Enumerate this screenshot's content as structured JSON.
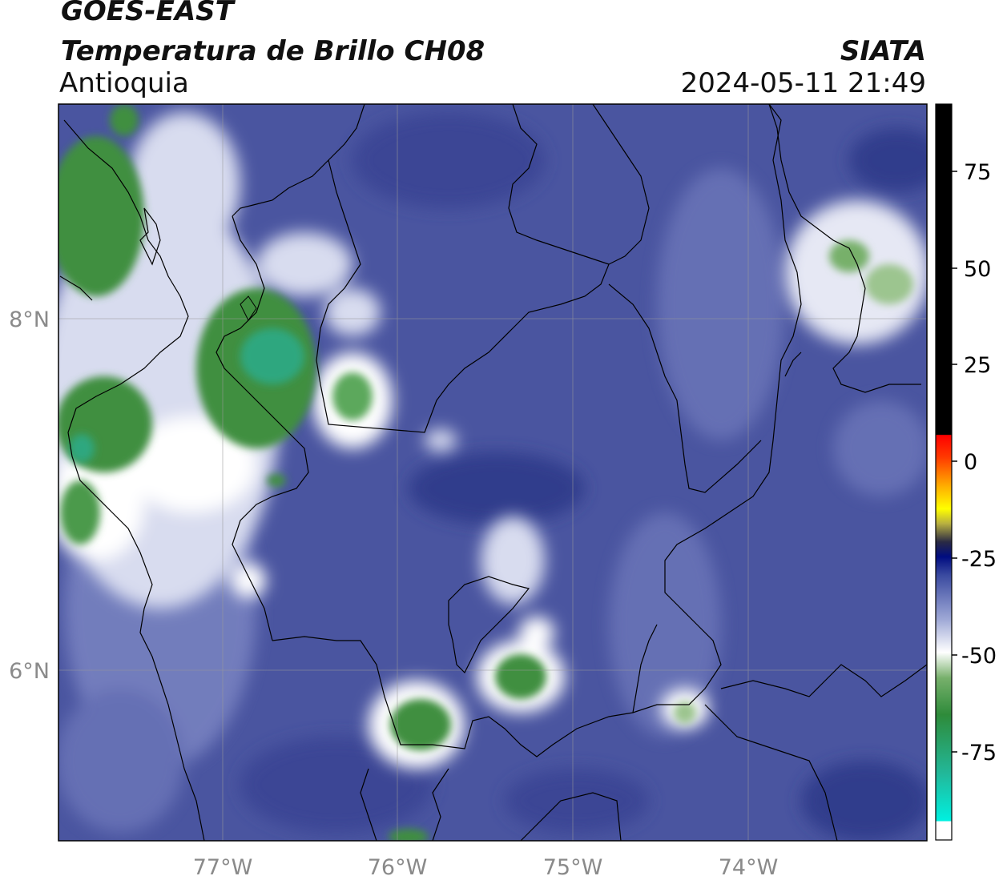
{
  "header": {
    "title": "GOES-EAST",
    "subtitle": "Temperatura de Brillo CH08",
    "region": "Antioquia",
    "brand": "SIATA",
    "timestamp": "2024-05-11 21:49"
  },
  "map": {
    "lon_ticks": [
      "77°W",
      "76°W",
      "75°W",
      "74°W"
    ],
    "lat_ticks": [
      "8°N",
      "6°N"
    ],
    "background_color": "#4a55a0",
    "cloud_colors": [
      "#d8dcef",
      "#ffffff",
      "#3f8f3f",
      "#2fa77f"
    ],
    "border_color": "#000000"
  },
  "colorbar": {
    "tick_labels": [
      "75",
      "50",
      "25",
      "0",
      "-25",
      "-50",
      "-75"
    ]
  }
}
